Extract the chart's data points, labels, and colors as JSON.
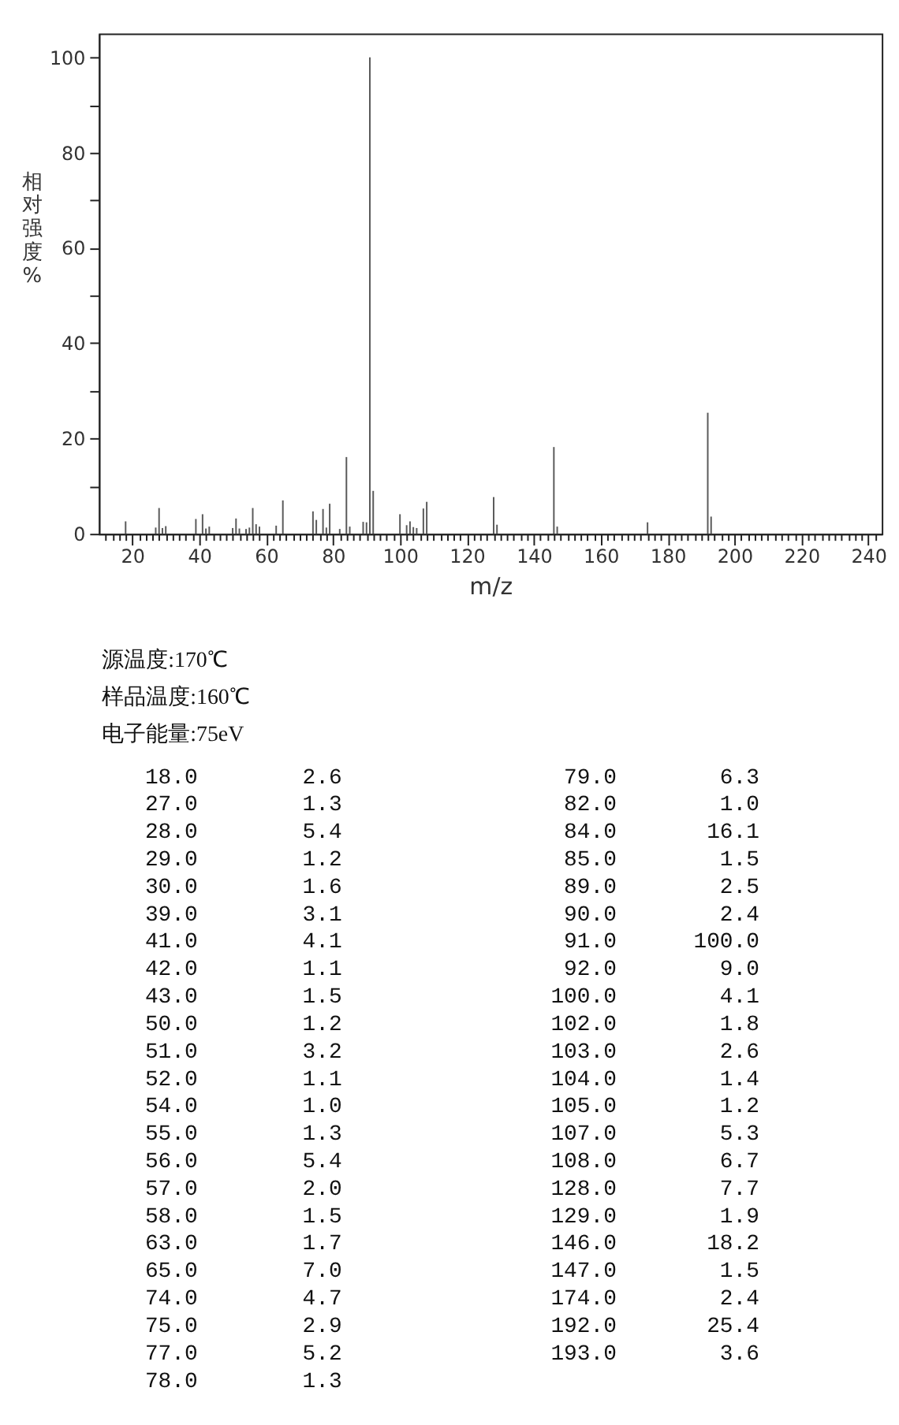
{
  "chart_data": [
    {
      "type": "bar",
      "xlabel": "m/z",
      "ylabel": "相对强度%",
      "color": "#5a5a5a",
      "x": [
        18,
        27,
        28,
        29,
        30,
        39,
        41,
        42,
        43,
        50,
        51,
        52,
        54,
        55,
        56,
        57,
        58,
        63,
        65,
        74,
        75,
        77,
        78,
        79,
        82,
        84,
        85,
        89,
        90,
        91,
        92,
        100,
        102,
        103,
        104,
        105,
        107,
        108,
        128,
        129,
        146,
        147,
        174,
        192,
        193
      ],
      "values": [
        2.6,
        1.3,
        5.4,
        1.2,
        1.6,
        3.1,
        4.1,
        1.1,
        1.5,
        1.2,
        3.2,
        1.1,
        1.0,
        1.3,
        5.4,
        2.0,
        1.5,
        1.7,
        7.0,
        4.7,
        2.9,
        5.2,
        1.3,
        6.3,
        1.0,
        16.1,
        1.5,
        2.5,
        2.4,
        100.0,
        9.0,
        4.1,
        1.8,
        2.6,
        1.4,
        1.2,
        5.3,
        6.7,
        7.7,
        1.9,
        18.2,
        1.5,
        2.4,
        25.4,
        3.6
      ],
      "xlim": [
        10,
        244
      ],
      "ylim": [
        0,
        105
      ],
      "xticks": [
        {
          "value": 12,
          "label": null
        },
        {
          "value": 14,
          "label": null
        },
        {
          "value": 16,
          "label": null
        },
        {
          "value": 18,
          "label": null
        },
        20,
        {
          "value": 22,
          "label": null
        },
        {
          "value": 24,
          "label": null
        },
        {
          "value": 26,
          "label": null
        },
        {
          "value": 28,
          "label": null
        },
        {
          "value": 30,
          "label": null
        },
        {
          "value": 32,
          "label": null
        },
        {
          "value": 34,
          "label": null
        },
        {
          "value": 36,
          "label": null
        },
        {
          "value": 38,
          "label": null
        },
        40,
        {
          "value": 42,
          "label": null
        },
        {
          "value": 44,
          "label": null
        },
        {
          "value": 46,
          "label": null
        },
        {
          "value": 48,
          "label": null
        },
        {
          "value": 50,
          "label": null
        },
        {
          "value": 52,
          "label": null
        },
        {
          "value": 54,
          "label": null
        },
        {
          "value": 56,
          "label": null
        },
        {
          "value": 58,
          "label": null
        },
        60,
        {
          "value": 62,
          "label": null
        },
        {
          "value": 64,
          "label": null
        },
        {
          "value": 66,
          "label": null
        },
        {
          "value": 68,
          "label": null
        },
        {
          "value": 70,
          "label": null
        },
        {
          "value": 72,
          "label": null
        },
        {
          "value": 74,
          "label": null
        },
        {
          "value": 76,
          "label": null
        },
        {
          "value": 78,
          "label": null
        },
        80,
        {
          "value": 82,
          "label": null
        },
        {
          "value": 84,
          "label": null
        },
        {
          "value": 86,
          "label": null
        },
        {
          "value": 88,
          "label": null
        },
        {
          "value": 90,
          "label": null
        },
        {
          "value": 92,
          "label": null
        },
        {
          "value": 94,
          "label": null
        },
        {
          "value": 96,
          "label": null
        },
        {
          "value": 98,
          "label": null
        },
        100,
        {
          "value": 102,
          "label": null
        },
        {
          "value": 104,
          "label": null
        },
        {
          "value": 106,
          "label": null
        },
        {
          "value": 108,
          "label": null
        },
        {
          "value": 110,
          "label": null
        },
        {
          "value": 112,
          "label": null
        },
        {
          "value": 114,
          "label": null
        },
        {
          "value": 116,
          "label": null
        },
        {
          "value": 118,
          "label": null
        },
        120,
        {
          "value": 122,
          "label": null
        },
        {
          "value": 124,
          "label": null
        },
        {
          "value": 126,
          "label": null
        },
        {
          "value": 128,
          "label": null
        },
        {
          "value": 130,
          "label": null
        },
        {
          "value": 132,
          "label": null
        },
        {
          "value": 134,
          "label": null
        },
        {
          "value": 136,
          "label": null
        },
        {
          "value": 138,
          "label": null
        },
        140,
        {
          "value": 142,
          "label": null
        },
        {
          "value": 144,
          "label": null
        },
        {
          "value": 146,
          "label": null
        },
        {
          "value": 148,
          "label": null
        },
        {
          "value": 150,
          "label": null
        },
        {
          "value": 152,
          "label": null
        },
        {
          "value": 154,
          "label": null
        },
        {
          "value": 156,
          "label": null
        },
        {
          "value": 158,
          "label": null
        },
        160,
        {
          "value": 162,
          "label": null
        },
        {
          "value": 164,
          "label": null
        },
        {
          "value": 166,
          "label": null
        },
        {
          "value": 168,
          "label": null
        },
        {
          "value": 170,
          "label": null
        },
        {
          "value": 172,
          "label": null
        },
        {
          "value": 174,
          "label": null
        },
        {
          "value": 176,
          "label": null
        },
        {
          "value": 178,
          "label": null
        },
        180,
        {
          "value": 182,
          "label": null
        },
        {
          "value": 184,
          "label": null
        },
        {
          "value": 186,
          "label": null
        },
        {
          "value": 188,
          "label": null
        },
        {
          "value": 190,
          "label": null
        },
        {
          "value": 192,
          "label": null
        },
        {
          "value": 194,
          "label": null
        },
        {
          "value": 196,
          "label": null
        },
        {
          "value": 198,
          "label": null
        },
        200,
        {
          "value": 202,
          "label": null
        },
        {
          "value": 204,
          "label": null
        },
        {
          "value": 206,
          "label": null
        },
        {
          "value": 208,
          "label": null
        },
        {
          "value": 210,
          "label": null
        },
        {
          "value": 212,
          "label": null
        },
        {
          "value": 214,
          "label": null
        },
        {
          "value": 216,
          "label": null
        },
        {
          "value": 218,
          "label": null
        },
        220,
        {
          "value": 222,
          "label": null
        },
        {
          "value": 224,
          "label": null
        },
        {
          "value": 226,
          "label": null
        },
        {
          "value": 228,
          "label": null
        },
        {
          "value": 230,
          "label": null
        },
        {
          "value": 232,
          "label": null
        },
        {
          "value": 234,
          "label": null
        },
        {
          "value": 236,
          "label": null
        },
        {
          "value": 238,
          "label": null
        },
        240,
        {
          "value": 242,
          "label": null
        }
      ],
      "yticks": [
        0,
        {
          "value": 10,
          "label": null
        },
        20,
        {
          "value": 30,
          "label": null
        },
        40,
        {
          "value": 50,
          "label": null
        },
        60,
        {
          "value": 70,
          "label": null
        },
        80,
        {
          "value": 90,
          "label": null
        },
        100
      ]
    },
    {
      "type": "other",
      "annotations": [
        "源温度:170℃",
        "样品温度:160℃",
        "电子能量:75eV"
      ],
      "categories": [
        "18.0",
        "27.0",
        "28.0",
        "29.0",
        "30.0",
        "39.0",
        "41.0",
        "42.0",
        "43.0",
        "50.0",
        "51.0",
        "52.0",
        "54.0",
        "55.0",
        "56.0",
        "57.0",
        "58.0",
        "63.0",
        "65.0",
        "74.0",
        "75.0",
        "77.0",
        "78.0",
        "79.0",
        "82.0",
        "84.0",
        "85.0",
        "89.0",
        "90.0",
        "91.0",
        "92.0",
        "100.0",
        "102.0",
        "103.0",
        "104.0",
        "105.0",
        "107.0",
        "108.0",
        "128.0",
        "129.0",
        "146.0",
        "147.0",
        "174.0",
        "192.0",
        "193.0"
      ],
      "value_labels": [
        "2.6",
        "1.3",
        "5.4",
        "1.2",
        "1.6",
        "3.1",
        "4.1",
        "1.1",
        "1.5",
        "1.2",
        "3.2",
        "1.1",
        "1.0",
        "1.3",
        "5.4",
        "2.0",
        "1.5",
        "1.7",
        "7.0",
        "4.7",
        "2.9",
        "5.2",
        "1.3",
        "6.3",
        "1.0",
        "16.1",
        "1.5",
        "2.5",
        "2.4",
        "100.0",
        "9.0",
        "4.1",
        "1.8",
        "2.6",
        "1.4",
        "1.2",
        "5.3",
        "6.7",
        "7.7",
        "1.9",
        "18.2",
        "1.5",
        "2.4",
        "25.4",
        "3.6"
      ]
    }
  ]
}
